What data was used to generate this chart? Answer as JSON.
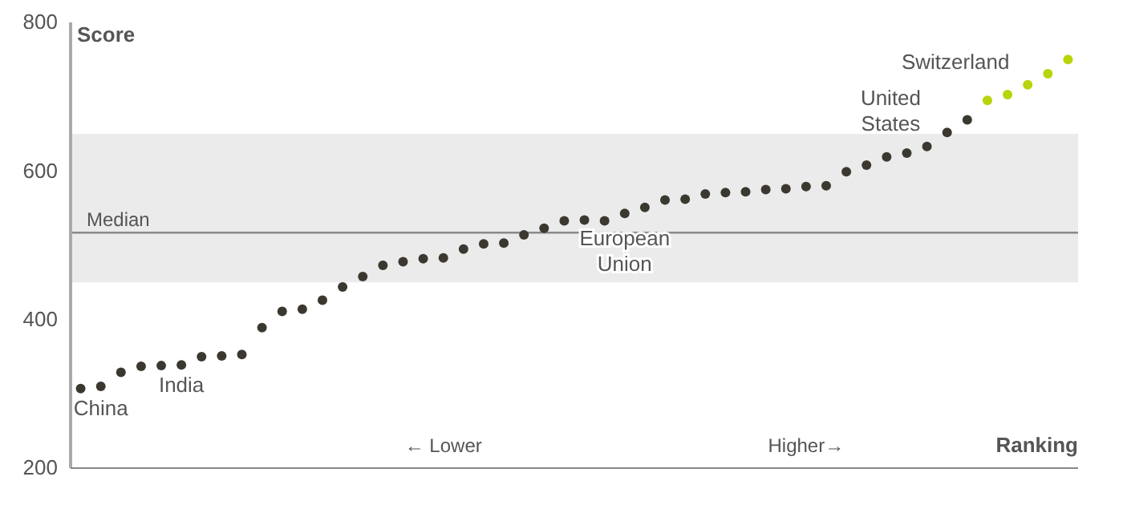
{
  "chart_data": {
    "type": "scatter",
    "xlabel": "Ranking",
    "ylabel": "Score",
    "categories": [
      null,
      null,
      null,
      null,
      null,
      null,
      null,
      null,
      null,
      null,
      null,
      null,
      null,
      null,
      null,
      null,
      null,
      null,
      null,
      null,
      null,
      null,
      null,
      null,
      null,
      null,
      null,
      null,
      null,
      null,
      null,
      null,
      null,
      null,
      null,
      null,
      null,
      null,
      null,
      null,
      null,
      null,
      null,
      null,
      null,
      null,
      null,
      null,
      null,
      null
    ],
    "series": [
      {
        "values": [
          307,
          310,
          329,
          337,
          338,
          339,
          350,
          351,
          353,
          389,
          411,
          414,
          426,
          444,
          458,
          473,
          478,
          482,
          483,
          495,
          502,
          503,
          514,
          523,
          533,
          534,
          533,
          543,
          551,
          561,
          562,
          569,
          571,
          572,
          575,
          576,
          579,
          580,
          599,
          608,
          619,
          624,
          633,
          652,
          669,
          695,
          703,
          716,
          731,
          750
        ],
        "colors": [
          "#3b3830",
          "#3b3830",
          "#3b3830",
          "#3b3830",
          "#3b3830",
          "#3b3830",
          "#3b3830",
          "#3b3830",
          "#3b3830",
          "#3b3830",
          "#3b3830",
          "#3b3830",
          "#3b3830",
          "#3b3830",
          "#3b3830",
          "#3b3830",
          "#3b3830",
          "#3b3830",
          "#3b3830",
          "#3b3830",
          "#3b3830",
          "#3b3830",
          "#3b3830",
          "#3b3830",
          "#3b3830",
          "#3b3830",
          "#3b3830",
          "#3b3830",
          "#3b3830",
          "#3b3830",
          "#3b3830",
          "#3b3830",
          "#3b3830",
          "#3b3830",
          "#3b3830",
          "#3b3830",
          "#3b3830",
          "#3b3830",
          "#3b3830",
          "#3b3830",
          "#3b3830",
          "#3b3830",
          "#3b3830",
          "#3b3830",
          "#3b3830",
          "#b8d40a",
          "#b8d40a",
          "#b8d40a",
          "#b8d40a",
          "#b8d40a"
        ]
      }
    ],
    "ylim": [
      200,
      800
    ],
    "yticks": [
      200,
      400,
      600,
      800
    ],
    "ref_lines": [
      {
        "axis": "y",
        "value": 517,
        "label": "Median",
        "color": "#8a8a8a"
      }
    ],
    "bands": [
      {
        "axis": "y",
        "from": 450,
        "to": 650,
        "color": "#ebebeb"
      }
    ],
    "annotations": [
      "China",
      "India",
      "European Union",
      "United States",
      "Switzerland",
      "← Lower",
      "Higher→"
    ]
  }
}
